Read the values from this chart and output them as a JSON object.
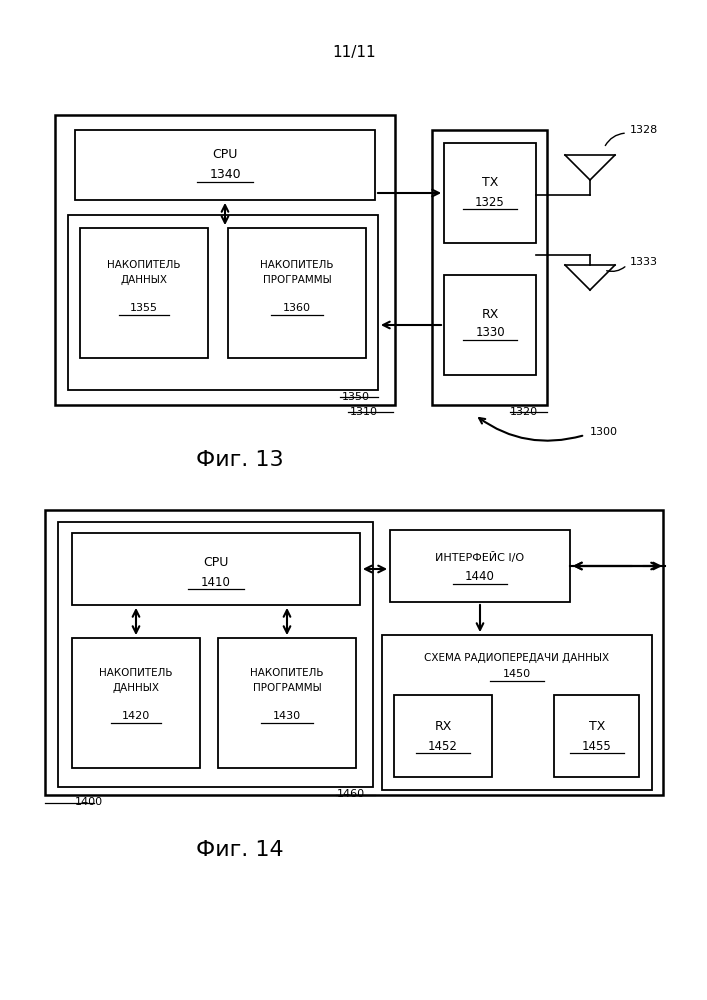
{
  "bg_color": "#ffffff",
  "page_label": "11/11",
  "fig13_title": "Фиг. 13",
  "fig14_title": "Фиг. 14"
}
